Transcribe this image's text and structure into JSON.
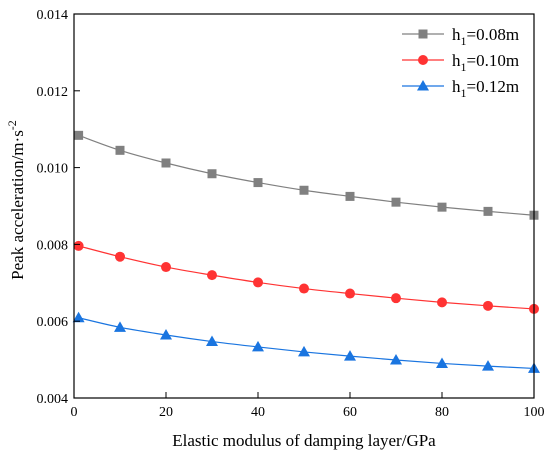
{
  "chart_data": {
    "type": "line",
    "title": "",
    "xlabel": "Elastic modulus of damping layer/GPa",
    "ylabel": "Peak acceleration/m·s",
    "ylabel_superscript": "-2",
    "xlim": [
      0,
      100
    ],
    "ylim": [
      0.004,
      0.014
    ],
    "xticks": [
      "0",
      "20",
      "40",
      "60",
      "80",
      "100"
    ],
    "yticks": [
      "0.004",
      "0.006",
      "0.008",
      "0.010",
      "0.012",
      "0.014"
    ],
    "x": [
      1,
      10,
      20,
      30,
      40,
      50,
      60,
      70,
      80,
      90,
      100
    ],
    "legend_position": "top-right",
    "grid": false,
    "series": [
      {
        "name": "h1=0.08m",
        "name_parts": {
          "base": "h",
          "sub": "1",
          "rest": "=0.08m"
        },
        "marker": "square",
        "color": "#808080",
        "values": [
          0.01084,
          0.01045,
          0.01012,
          0.00984,
          0.00961,
          0.00941,
          0.00925,
          0.0091,
          0.00897,
          0.00886,
          0.00876
        ]
      },
      {
        "name": "h1=0.10m",
        "name_parts": {
          "base": "h",
          "sub": "1",
          "rest": "=0.10m"
        },
        "marker": "circle",
        "color": "#ff3333",
        "values": [
          0.00796,
          0.00768,
          0.00741,
          0.0072,
          0.00701,
          0.00685,
          0.00672,
          0.0066,
          0.00649,
          0.0064,
          0.00632
        ]
      },
      {
        "name": "h1=0.12m",
        "name_parts": {
          "base": "h",
          "sub": "1",
          "rest": "=0.12m"
        },
        "marker": "triangle",
        "color": "#1a75e0",
        "values": [
          0.00609,
          0.00584,
          0.00564,
          0.00547,
          0.00533,
          0.0052,
          0.00509,
          0.00499,
          0.0049,
          0.00483,
          0.00477
        ]
      }
    ]
  }
}
